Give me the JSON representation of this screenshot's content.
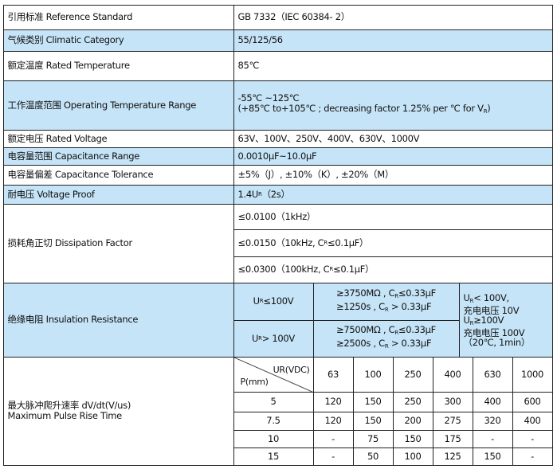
{
  "colors": {
    "highlight_row": "#c6e4f7",
    "border": "#222222"
  },
  "rows": [
    {
      "label": "引用标准 Reference Standard",
      "value": "GB 7332（IEC 60384- 2）"
    },
    {
      "label": "气候类别 Climatic Category",
      "value": "55/125/56"
    },
    {
      "label": "额定温度 Rated Temperature",
      "value": "85℃"
    },
    {
      "label": "工作温度范围 Operating Temperature Range",
      "value_line1": "-55℃ ~125℃",
      "value_line2": "(+85℃ to+105℃ ; decreasing factor 1.25% per ℃ for V",
      "value_line2_sub": "R",
      "value_line2_end": ")"
    },
    {
      "label": "额定电压 Rated Voltage",
      "value": "63V、100V、250V、400V、630V、1000V"
    },
    {
      "label": "电容量范围 Capacitance Range",
      "value": "0.0010μF~10.0μF"
    },
    {
      "label": "电容量偏差 Capacitance Tolerance",
      "value": "±5%（J）, ±10%（K）, ±20%（M）"
    },
    {
      "label": "耐电压 Voltage Proof",
      "value": "1.4U",
      "value_sub": "R",
      "value_end": "（2s）"
    }
  ],
  "dissipation": {
    "label": "损耗角正切 Dissipation Factor",
    "values": [
      "≤0.0100（1kHz）",
      "≤0.0150（10kHz, C",
      "≤0.0300（100kHz, C"
    ],
    "sub": "R",
    "end": "≤0.1μF）"
  },
  "insulation": {
    "label": "绝缘电阻 Insulation Resistance",
    "conditions": [
      {
        "cond_pre": "U",
        "cond_sub": "R",
        "cond": "≤100V",
        "l1": "≥3750MΩ , C",
        "l1_end": "≤0.33μF",
        "l2": "≥1250s ,    C",
        "l2_end": " > 0.33μF"
      },
      {
        "cond_pre": "U",
        "cond_sub": "R",
        "cond": " > 100V",
        "l1": "≥7500MΩ , C",
        "l1_end": "≤0.33μF",
        "l2": "≥2500s ,    C",
        "l2_end": " > 0.33μF"
      }
    ],
    "note": {
      "a": "U",
      "a_sub": "R",
      "a_end": "< 100V,",
      "b": "充电电压 10V",
      "c": "U",
      "c_sub": "R",
      "c_end": "≥100V",
      "d": "充电电压 100V",
      "e": "（20℃, 1min）"
    }
  },
  "pulse": {
    "label1": "最大脉冲爬升速率 dV/dt(V/us)",
    "label2": "Maximum Pulse Rise Time",
    "header_ur": "UR(VDC)",
    "header_p": "P(mm)",
    "voltages": [
      "63",
      "100",
      "250",
      "400",
      "630",
      "1000"
    ],
    "rows": [
      {
        "p": "5",
        "values": [
          "120",
          "150",
          "250",
          "300",
          "400",
          "600"
        ]
      },
      {
        "p": "7.5",
        "values": [
          "120",
          "150",
          "200",
          "275",
          "320",
          "400"
        ]
      },
      {
        "p": "10",
        "values": [
          "-",
          "75",
          "150",
          "175",
          "-",
          "-"
        ]
      },
      {
        "p": "15",
        "values": [
          "-",
          "50",
          "100",
          "125",
          "150",
          "-"
        ]
      }
    ]
  }
}
